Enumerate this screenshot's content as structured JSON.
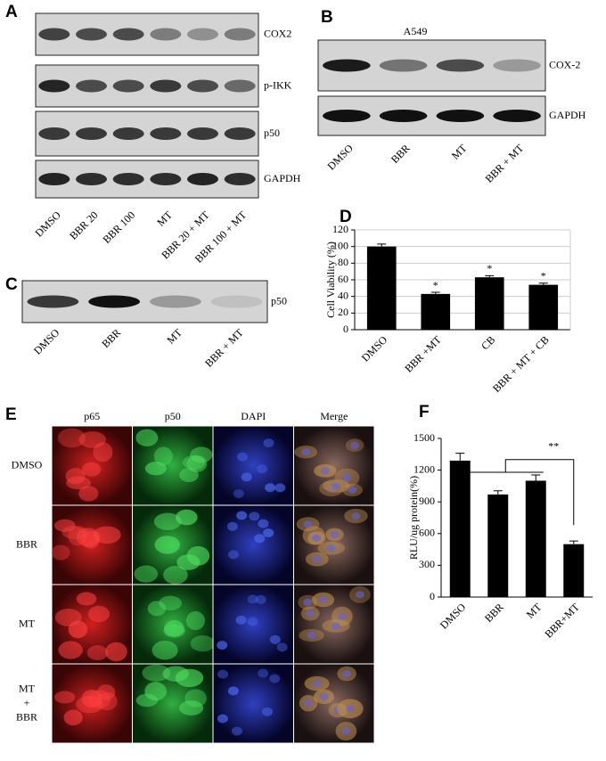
{
  "panels": {
    "A": {
      "label": "A",
      "blots": [
        "COX2",
        "p-IKK",
        "p50",
        "GAPDH"
      ],
      "lanes": [
        "DMSO",
        "BBR 20",
        "BBR 100",
        "MT",
        "BBR 20 + MT",
        "BBR 100 + MT"
      ]
    },
    "B": {
      "label": "B",
      "cell_line": "A549",
      "blots": [
        "COX-2",
        "GAPDH"
      ],
      "lanes": [
        "DMSO",
        "BBR",
        "MT",
        "BBR + MT"
      ]
    },
    "C": {
      "label": "C",
      "blots": [
        "p50"
      ],
      "lanes": [
        "DMSO",
        "BBR",
        "MT",
        "BBR + MT"
      ]
    },
    "E": {
      "label": "E",
      "columns": [
        "p65",
        "p50",
        "DAPI",
        "Merge"
      ],
      "rows": [
        [
          "DMSO"
        ],
        [
          "BBR"
        ],
        [
          "MT"
        ],
        [
          "MT",
          "+",
          "BBR"
        ]
      ]
    }
  },
  "chart_data": [
    {
      "type": "bar",
      "panel": "D",
      "y_label": "Cell Viability (%)",
      "categories": [
        "DMSO",
        "BBR +MT",
        "CB",
        "BBR + MT + CB"
      ],
      "values": [
        100,
        43,
        63,
        54
      ],
      "errors": [
        3,
        2,
        2,
        2
      ],
      "markers": [
        null,
        "*",
        "*",
        "*"
      ],
      "color": "#000000",
      "ylim": [
        0,
        120
      ],
      "yticks": [
        0,
        20,
        40,
        60,
        80,
        100,
        120
      ],
      "grid": true
    },
    {
      "type": "bar",
      "panel": "F",
      "y_label": "RLU/ug protein(%)",
      "categories": [
        "DMSO",
        "BBR",
        "MT",
        "BBR+MT"
      ],
      "values": [
        1290,
        970,
        1100,
        500
      ],
      "errors": [
        70,
        35,
        55,
        30
      ],
      "annotation": "**",
      "color": "#000000",
      "ylim": [
        0,
        1500
      ],
      "yticks": [
        0,
        300,
        600,
        900,
        1200,
        1500
      ],
      "grid": false
    }
  ]
}
